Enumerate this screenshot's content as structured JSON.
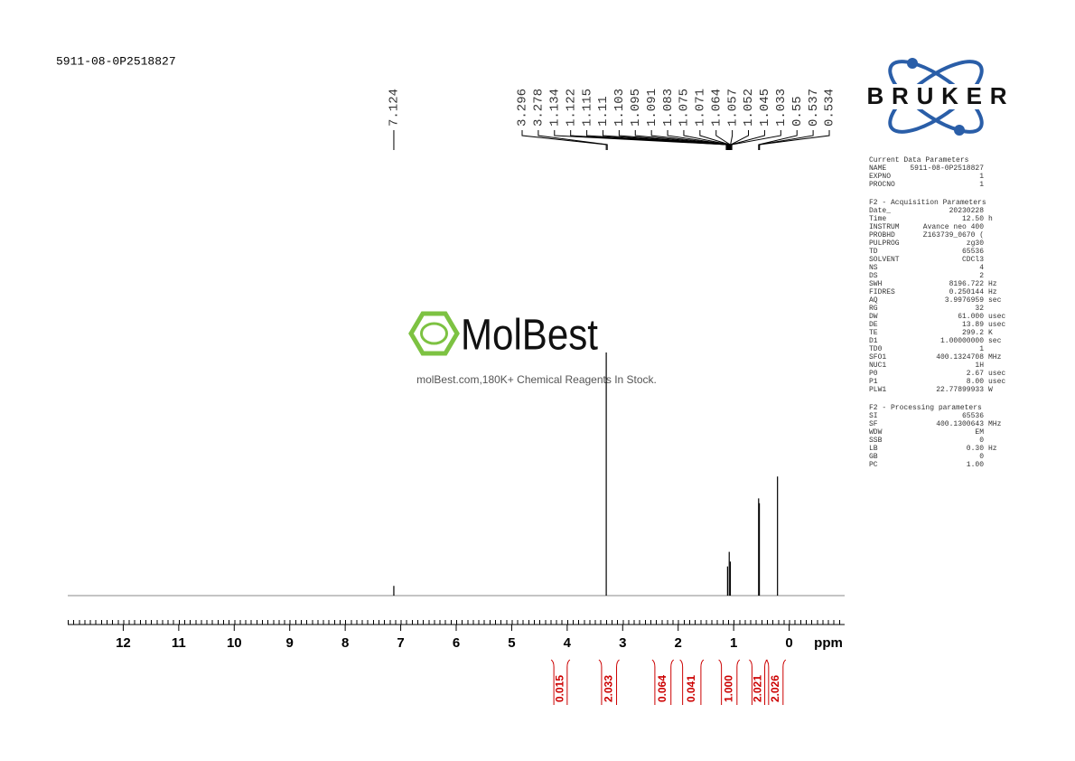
{
  "sample_id": "5911-08-0P2518827",
  "logo": "BRUKER",
  "watermark": {
    "brand": "MolBest",
    "tagline": "molBest.com,180K+ Chemical Reagents In Stock."
  },
  "chart_data": {
    "type": "spectrum",
    "x_label": "ppm",
    "xlim": [
      13,
      -1
    ],
    "xticks": [
      12,
      11,
      10,
      9,
      8,
      7,
      6,
      5,
      4,
      3,
      2,
      1,
      0
    ],
    "ylim": [
      0,
      100
    ],
    "color": "#000000",
    "x": [
      7.124,
      3.296,
      1.11,
      1.08,
      1.06,
      0.55,
      0.537,
      0.21
    ],
    "values": [
      4,
      100,
      12,
      18,
      14,
      40,
      38,
      49
    ],
    "peak_labels": [
      7.124,
      3.296,
      3.278,
      1.134,
      1.122,
      1.115,
      1.11,
      1.103,
      1.095,
      1.091,
      1.083,
      1.075,
      1.071,
      1.064,
      1.057,
      1.052,
      1.045,
      1.033,
      0.55,
      0.537,
      0.534
    ],
    "integral_color": "#cc0000",
    "integrals": [
      {
        "range": [
          4.24,
          4.0
        ],
        "value": 0.015
      },
      {
        "range": [
          3.38,
          3.11
        ],
        "value": 2.033
      },
      {
        "range": [
          2.42,
          2.13
        ],
        "value": 0.064
      },
      {
        "range": [
          1.92,
          1.59
        ],
        "value": 0.041
      },
      {
        "range": [
          1.22,
          0.94
        ],
        "value": 1,
        "label": "1.000"
      },
      {
        "range": [
          0.67,
          0.44
        ],
        "value": 2.021
      },
      {
        "range": [
          0.37,
          0.11
        ],
        "value": 2.026
      }
    ]
  },
  "parameters": [
    {
      "title": "Current Data Parameters",
      "rows": [
        [
          "NAME",
          "5911-08-0P2518827",
          ""
        ],
        [
          "EXPNO",
          "1",
          ""
        ],
        [
          "PROCNO",
          "1",
          ""
        ]
      ]
    },
    {
      "title": "F2 - Acquisition Parameters",
      "rows": [
        [
          "Date_",
          "20230228",
          ""
        ],
        [
          "Time",
          "12.50",
          "h"
        ],
        [
          "INSTRUM",
          "Avance neo 400",
          ""
        ],
        [
          "PROBHD",
          "Z163739_0670 (",
          ""
        ],
        [
          "PULPROG",
          "zg30",
          ""
        ],
        [
          "TD",
          "65536",
          ""
        ],
        [
          "SOLVENT",
          "CDCl3",
          ""
        ],
        [
          "NS",
          "4",
          ""
        ],
        [
          "DS",
          "2",
          ""
        ],
        [
          "SWH",
          "8196.722",
          "Hz"
        ],
        [
          "FIDRES",
          "0.250144",
          "Hz"
        ],
        [
          "AQ",
          "3.9976959",
          "sec"
        ],
        [
          "RG",
          "32",
          ""
        ],
        [
          "DW",
          "61.000",
          "usec"
        ],
        [
          "DE",
          "13.89",
          "usec"
        ],
        [
          "TE",
          "299.2",
          "K"
        ],
        [
          "D1",
          "1.00000000",
          "sec"
        ],
        [
          "TD0",
          "1",
          ""
        ],
        [
          "SFO1",
          "400.1324708",
          "MHz"
        ],
        [
          "NUC1",
          "1H",
          ""
        ],
        [
          "P0",
          "2.67",
          "usec"
        ],
        [
          "P1",
          "8.00",
          "usec"
        ],
        [
          "PLW1",
          "22.77899933",
          "W"
        ]
      ]
    },
    {
      "title": "F2 - Processing parameters",
      "rows": [
        [
          "SI",
          "65536",
          ""
        ],
        [
          "SF",
          "400.1300643",
          "MHz"
        ],
        [
          "WDW",
          "EM",
          ""
        ],
        [
          "SSB",
          "0",
          ""
        ],
        [
          "LB",
          "0.30",
          "Hz"
        ],
        [
          "GB",
          "0",
          ""
        ],
        [
          "PC",
          "1.00",
          ""
        ]
      ]
    }
  ]
}
